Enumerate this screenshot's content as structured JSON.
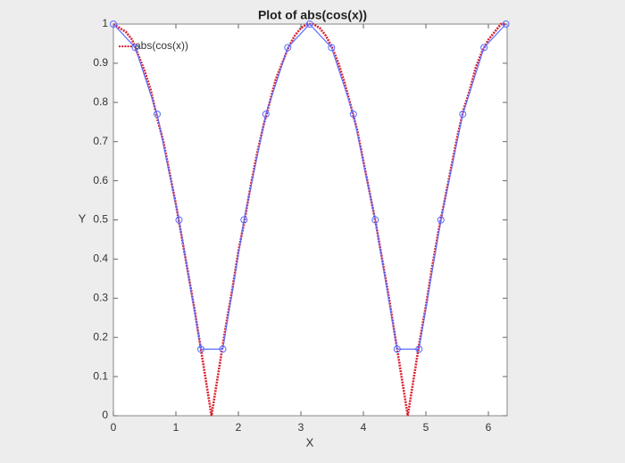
{
  "chart_data": {
    "type": "line",
    "title": "Plot of abs(cos(x))",
    "x_label": "X",
    "y_label": "Y",
    "xlim": [
      0,
      6.3
    ],
    "ylim": [
      0,
      1
    ],
    "xticks": [
      0,
      1,
      2,
      3,
      4,
      5,
      6
    ],
    "yticks": [
      0,
      0.1,
      0.2,
      0.3,
      0.4,
      0.5,
      0.6,
      0.7,
      0.8,
      0.9,
      1
    ],
    "legend": "upper left",
    "series": [
      {
        "name": "abs(cos(x))",
        "color": "#d9202f",
        "style": "dotted",
        "x": [
          0,
          0.1,
          0.2,
          0.3,
          0.4,
          0.5,
          0.6,
          0.7,
          0.8,
          0.9,
          1.0,
          1.1,
          1.2,
          1.3,
          1.4,
          1.5,
          1.57,
          1.6,
          1.7,
          1.8,
          1.9,
          2.0,
          2.1,
          2.2,
          2.3,
          2.4,
          2.5,
          2.6,
          2.7,
          2.8,
          2.9,
          3.0,
          3.1,
          3.2,
          3.3,
          3.4,
          3.5,
          3.6,
          3.7,
          3.8,
          3.9,
          4.0,
          4.1,
          4.2,
          4.3,
          4.4,
          4.5,
          4.6,
          4.7,
          4.71,
          4.8,
          4.9,
          5.0,
          5.1,
          5.2,
          5.3,
          5.4,
          5.5,
          5.6,
          5.7,
          5.8,
          5.9,
          6.0,
          6.1,
          6.2,
          6.28
        ],
        "values": [
          1.0,
          0.99,
          0.98,
          0.96,
          0.92,
          0.88,
          0.83,
          0.76,
          0.7,
          0.62,
          0.54,
          0.45,
          0.36,
          0.27,
          0.17,
          0.07,
          0,
          0.03,
          0.13,
          0.23,
          0.32,
          0.42,
          0.5,
          0.59,
          0.67,
          0.74,
          0.8,
          0.86,
          0.9,
          0.94,
          0.97,
          0.99,
          1.0,
          1.0,
          0.99,
          0.97,
          0.94,
          0.9,
          0.85,
          0.79,
          0.73,
          0.65,
          0.57,
          0.49,
          0.4,
          0.31,
          0.21,
          0.11,
          0.01,
          0,
          0.09,
          0.19,
          0.28,
          0.38,
          0.47,
          0.55,
          0.63,
          0.71,
          0.78,
          0.83,
          0.89,
          0.93,
          0.96,
          0.98,
          1.0,
          1.0
        ]
      },
      {
        "color": "#5b6cff",
        "style": "solid-circles",
        "x": [
          0,
          0.35,
          0.7,
          1.05,
          1.4,
          1.75,
          2.09,
          2.44,
          2.79,
          3.14,
          3.49,
          3.84,
          4.19,
          4.54,
          4.89,
          5.24,
          5.59,
          5.93,
          6.28
        ],
        "values": [
          1,
          0.94,
          0.77,
          0.5,
          0.17,
          0.17,
          0.5,
          0.77,
          0.94,
          1,
          0.94,
          0.77,
          0.5,
          0.17,
          0.17,
          0.5,
          0.77,
          0.94,
          1
        ]
      }
    ]
  }
}
